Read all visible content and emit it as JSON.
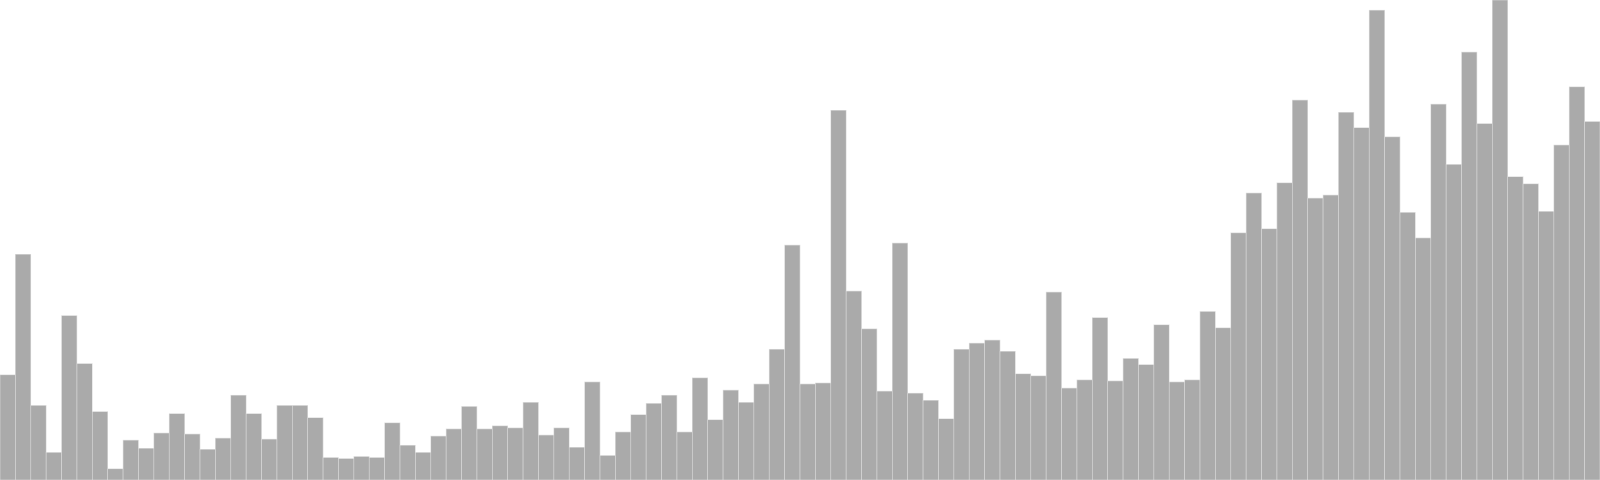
{
  "chart_data": {
    "type": "bar",
    "color": "#aaaaaa",
    "ylim": [
      0,
      470
    ],
    "values": [
      103,
      221,
      73,
      27,
      161,
      114,
      67,
      11,
      39,
      31,
      46,
      65,
      45,
      30,
      41,
      83,
      65,
      40,
      73,
      73,
      61,
      22,
      21,
      23,
      22,
      56,
      34,
      27,
      43,
      50,
      72,
      50,
      53,
      51,
      76,
      44,
      51,
      32,
      96,
      24,
      47,
      64,
      75,
      83,
      47,
      100,
      59,
      88,
      76,
      94,
      128,
      230,
      94,
      95,
      362,
      185,
      148,
      87,
      232,
      85,
      78,
      60,
      128,
      134,
      137,
      126,
      104,
      102,
      184,
      90,
      98,
      159,
      97,
      119,
      113,
      152,
      96,
      98,
      165,
      149,
      242,
      281,
      246,
      291,
      372,
      276,
      279,
      360,
      345,
      460,
      336,
      262,
      237,
      368,
      309,
      419,
      349,
      470,
      297,
      290,
      263,
      328,
      385,
      351
    ]
  }
}
